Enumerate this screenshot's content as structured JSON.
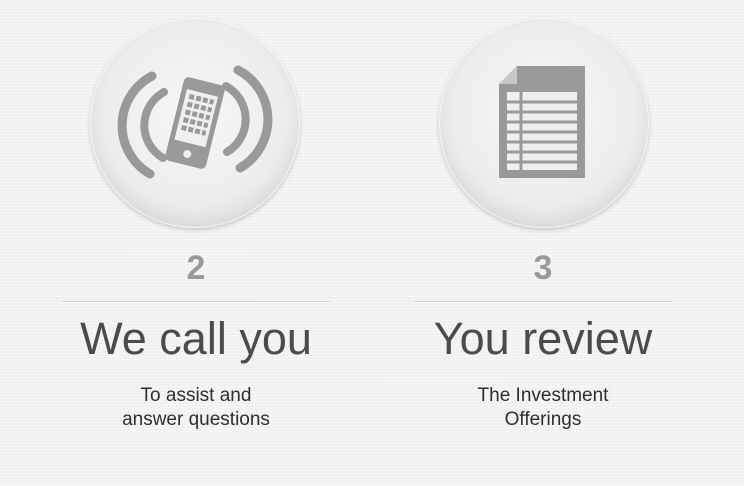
{
  "steps": [
    {
      "number": "2",
      "title": "We call you",
      "description": [
        "To assist and",
        "answer questions"
      ],
      "icon": "ringing-phone-icon"
    },
    {
      "number": "3",
      "title": "You review",
      "description": [
        "The Investment",
        "Offerings"
      ],
      "icon": "document-icon"
    }
  ],
  "colors": {
    "background": "#f2f2f1",
    "number": "#999999",
    "title": "#4b4b4b",
    "description": "#2e2e2e",
    "icon": "#9a9898"
  }
}
